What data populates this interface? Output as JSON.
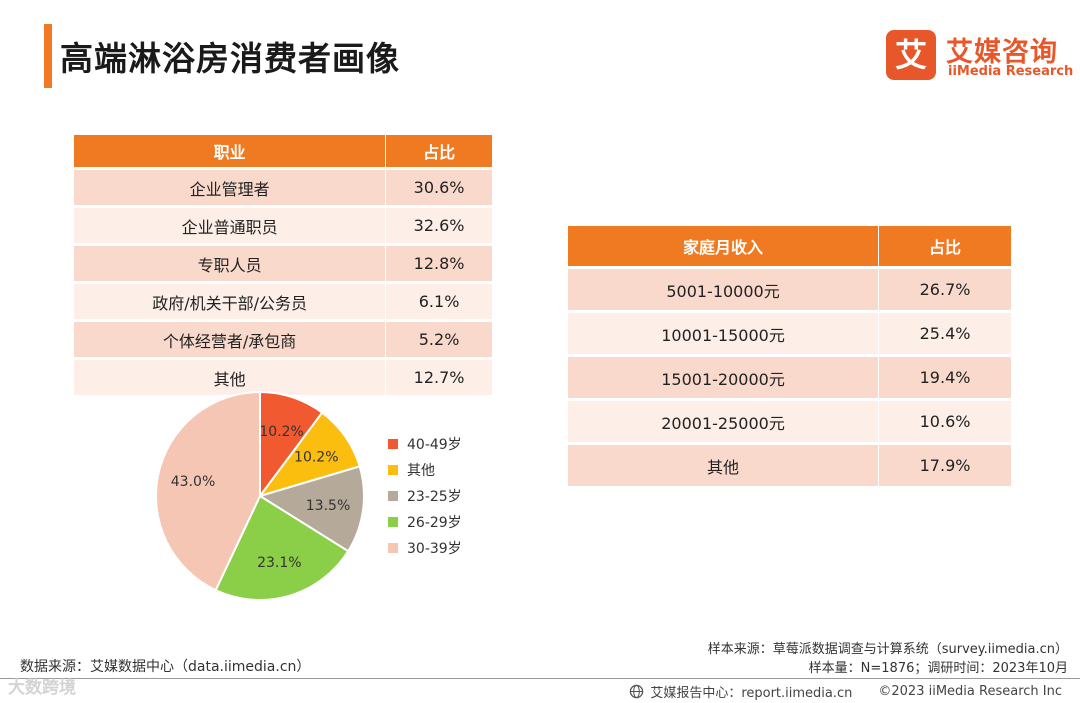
{
  "header": {
    "title": "高端淋浴房消费者画像",
    "logo_mark": "艾",
    "logo_cn": "艾媒咨询",
    "logo_en": "iiMedia Research"
  },
  "colors": {
    "accent": "#f07a22",
    "row_dark": "#f9d9cc",
    "row_light": "#fdeee8",
    "logo": "#e8572a"
  },
  "occupation_table": {
    "headers": [
      "职业",
      "占比"
    ],
    "rows": [
      [
        "企业管理者",
        "30.6%"
      ],
      [
        "企业普通职员",
        "32.6%"
      ],
      [
        "专职人员",
        "12.8%"
      ],
      [
        "政府/机关干部/公务员",
        "6.1%"
      ],
      [
        "个体经营者/承包商",
        "5.2%"
      ],
      [
        "其他",
        "12.7%"
      ]
    ]
  },
  "income_table": {
    "headers": [
      "家庭月收入",
      "占比"
    ],
    "rows": [
      [
        "5001-10000元",
        "26.7%"
      ],
      [
        "10001-15000元",
        "25.4%"
      ],
      [
        "15001-20000元",
        "19.4%"
      ],
      [
        "20001-25000元",
        "10.6%"
      ],
      [
        "其他",
        "17.9%"
      ]
    ]
  },
  "chart_data": {
    "type": "pie",
    "title": "",
    "categories": [
      "40-49岁",
      "其他",
      "23-25岁",
      "26-29岁",
      "30-39岁"
    ],
    "values": [
      10.2,
      10.2,
      13.5,
      23.1,
      43.0
    ],
    "labels": [
      "10.2%",
      "10.2%",
      "13.5%",
      "23.1%",
      "43.0%"
    ],
    "colors": [
      "#f15a30",
      "#fbbd0e",
      "#b5aa99",
      "#8bcf48",
      "#f5c6b4"
    ],
    "legend_position": "right"
  },
  "footer": {
    "source_left": "数据来源：艾媒数据中心（data.iimedia.cn）",
    "sample_source": "样本来源：草莓派数据调查与计算系统（survey.iimedia.cn）",
    "sample_info": "样本量：N=1876；调研时间：2023年10月",
    "report_center": "艾媒报告中心：report.iimedia.cn",
    "copyright": "©2023  iiMedia Research  Inc",
    "watermark": "大数跨境"
  }
}
